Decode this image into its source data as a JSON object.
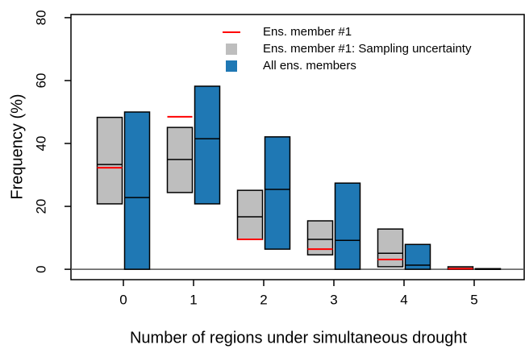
{
  "chart_data": {
    "type": "range-bar",
    "x_label": "Number of regions under simultaneous drought",
    "y_label": "Frequency (%)",
    "categories": [
      "0",
      "1",
      "2",
      "3",
      "4",
      "5"
    ],
    "ylim": [
      -3.3,
      81
    ],
    "yticks": [
      0,
      20,
      40,
      60,
      80
    ],
    "hline": 0,
    "series": [
      {
        "name": "Ens. member #1",
        "color": "#ff0000",
        "values": [
          32.3,
          48.5,
          9.5,
          6.4,
          3.1,
          0.2
        ]
      },
      {
        "name": "Ens. member #1: Sampling uncertainty",
        "color": "#bebebe",
        "low": [
          20.8,
          24.4,
          9.5,
          4.6,
          0.8,
          0
        ],
        "high": [
          48.3,
          45.1,
          25.1,
          15.4,
          12.8,
          0.8
        ],
        "median": [
          33.3,
          34.9,
          16.7,
          9.5,
          5.1,
          0.3
        ]
      },
      {
        "name": "All ens. members",
        "color": "#1f78b4",
        "low": [
          0,
          20.8,
          6.4,
          0,
          0,
          0
        ],
        "high": [
          50,
          58.2,
          42.1,
          27.4,
          7.9,
          0.2
        ],
        "median": [
          22.8,
          41.5,
          25.4,
          9.2,
          1.3,
          0
        ]
      }
    ]
  }
}
